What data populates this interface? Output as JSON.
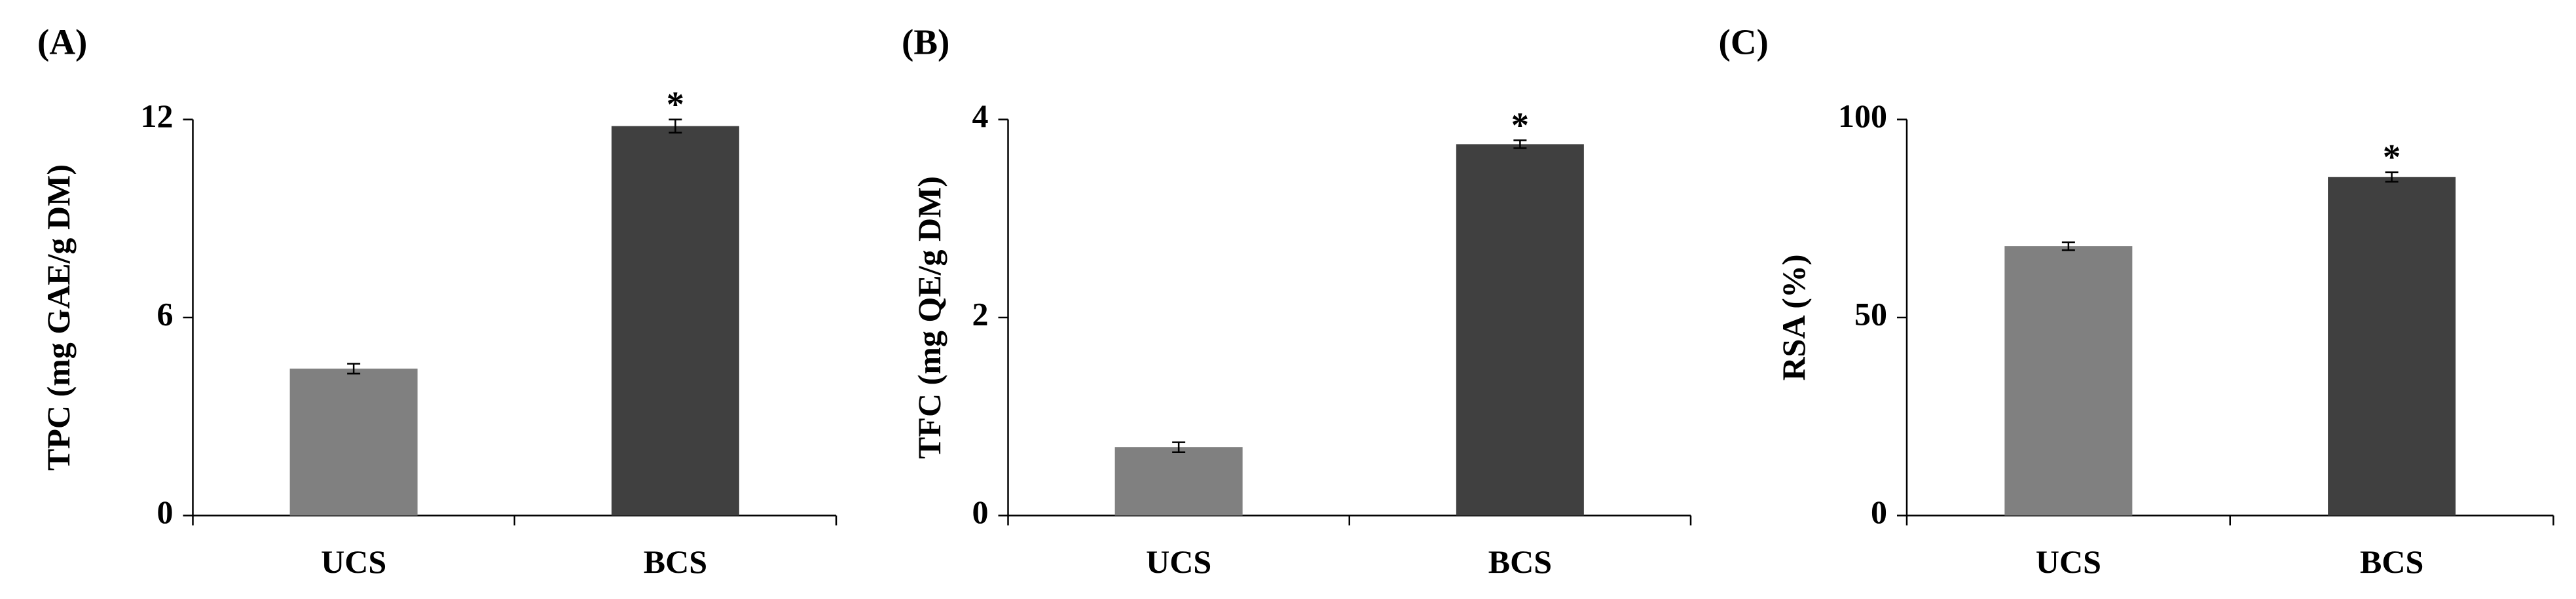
{
  "chart_data": [
    {
      "type": "bar",
      "panel_label": "(A)",
      "y_label": "TPC (mg GAE/g DM)",
      "categories": [
        "UCS",
        "BCS"
      ],
      "values": [
        4.45,
        11.8
      ],
      "errors": [
        0.15,
        0.2
      ],
      "colors": [
        "#808080",
        "#404040"
      ],
      "annotations": [
        null,
        "*"
      ],
      "ylim": [
        0,
        12
      ],
      "yticks": [
        0,
        6,
        12
      ]
    },
    {
      "type": "bar",
      "panel_label": "(B)",
      "y_label": "TFC (mg QE/g DM)",
      "categories": [
        "UCS",
        "BCS"
      ],
      "values": [
        0.69,
        3.75
      ],
      "errors": [
        0.05,
        0.04
      ],
      "colors": [
        "#808080",
        "#404040"
      ],
      "annotations": [
        null,
        "*"
      ],
      "ylim": [
        0,
        4
      ],
      "yticks": [
        0,
        2,
        4
      ]
    },
    {
      "type": "bar",
      "panel_label": "(C)",
      "y_label": "RSA (%)",
      "categories": [
        "UCS",
        "BCS"
      ],
      "values": [
        68,
        85.5
      ],
      "errors": [
        1,
        1.2
      ],
      "colors": [
        "#808080",
        "#404040"
      ],
      "annotations": [
        null,
        "*"
      ],
      "ylim": [
        0,
        100
      ],
      "yticks": [
        0,
        50,
        100
      ]
    }
  ]
}
